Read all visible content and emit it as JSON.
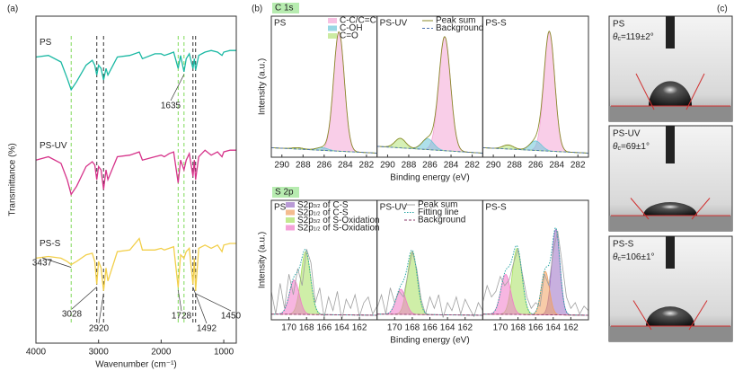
{
  "panel_labels": [
    "(a)",
    "(b)",
    "(c)"
  ],
  "chart_data": [
    {
      "type": "ftir",
      "xlabel": "Wavenumber (cm⁻¹)",
      "ylabel": "Transmittance (%)",
      "xlim": [
        4000,
        800
      ],
      "xticks": [
        4000,
        3000,
        2000,
        1000
      ],
      "ylim": [
        0,
        10
      ],
      "x": [
        4000,
        3800,
        3600,
        3500,
        3437,
        3350,
        3200,
        3100,
        3060,
        3028,
        3000,
        2960,
        2920,
        2880,
        2850,
        2700,
        2500,
        2350,
        2300,
        2100,
        2000,
        1950,
        1870,
        1800,
        1728,
        1690,
        1635,
        1600,
        1550,
        1492,
        1470,
        1450,
        1400,
        1300,
        1200,
        1100,
        1028,
        1000,
        900,
        800
      ],
      "series": [
        {
          "name": "PS",
          "color": "#1ab8a3",
          "values": [
            8.75,
            8.8,
            8.6,
            8.1,
            7.75,
            8.0,
            8.5,
            8.65,
            8.5,
            8.2,
            8.5,
            8.4,
            8.05,
            8.4,
            8.2,
            8.75,
            8.8,
            8.9,
            8.7,
            8.85,
            8.85,
            8.8,
            8.85,
            8.9,
            8.4,
            8.8,
            8.3,
            8.7,
            8.85,
            8.4,
            8.7,
            8.35,
            8.8,
            8.9,
            8.95,
            8.9,
            8.8,
            8.9,
            8.95,
            8.95
          ]
        },
        {
          "name": "PS-UV",
          "color": "#d6338a",
          "values": [
            5.6,
            5.7,
            5.5,
            5.0,
            4.55,
            4.8,
            5.4,
            5.55,
            5.45,
            5.0,
            5.4,
            5.3,
            4.7,
            5.3,
            5.0,
            5.7,
            5.75,
            5.85,
            5.6,
            5.7,
            5.75,
            5.7,
            5.8,
            5.85,
            4.9,
            5.6,
            5.3,
            5.6,
            5.8,
            5.1,
            5.6,
            5.0,
            5.7,
            5.9,
            5.75,
            5.85,
            5.7,
            5.85,
            5.9,
            5.9
          ]
        },
        {
          "name": "PS-S",
          "color": "#f2cf4a",
          "values": [
            2.6,
            2.65,
            2.6,
            2.5,
            2.4,
            2.5,
            2.7,
            2.75,
            2.5,
            1.8,
            2.5,
            2.3,
            1.6,
            2.3,
            1.9,
            2.8,
            2.85,
            3.2,
            2.85,
            2.85,
            2.9,
            2.85,
            2.9,
            2.95,
            1.7,
            2.7,
            2.6,
            2.8,
            2.9,
            1.8,
            2.6,
            1.6,
            2.9,
            3.0,
            2.9,
            3.0,
            2.8,
            3.0,
            3.05,
            3.05
          ]
        }
      ],
      "guides": [
        {
          "value": 3437,
          "color": "#7ed957"
        },
        {
          "value": 3028,
          "color": "#333333"
        },
        {
          "value": 2920,
          "color": "#333333"
        },
        {
          "value": 1728,
          "color": "#7ed957"
        },
        {
          "value": 1635,
          "color": "#7ed957"
        },
        {
          "value": 1492,
          "color": "#333333"
        },
        {
          "value": 1450,
          "color": "#333333"
        }
      ],
      "annotations": [
        1635,
        3437,
        3028,
        2920,
        1728,
        1492,
        1450
      ]
    },
    {
      "type": "xps",
      "tag": "C 1s",
      "xlabel": "Binding energy (eV)",
      "ylabel": "Intensity (a.u.)",
      "xlim": [
        291,
        281
      ],
      "xticks": [
        290,
        288,
        286,
        284,
        282
      ],
      "ylim": [
        0,
        1
      ],
      "panels": [
        "PS",
        "PS-UV",
        "PS-S"
      ],
      "series": [
        {
          "name": "C-C/C=C",
          "color": "#f4a6d6",
          "centers": [
            284.6,
            284.6,
            284.7
          ],
          "heights": [
            0.88,
            0.84,
            0.88
          ],
          "widths": [
            1.2,
            1.3,
            1.2
          ]
        },
        {
          "name": "C-OH",
          "color": "#6cc6d8",
          "centers": [
            286.2,
            286.2,
            286.0
          ],
          "heights": [
            0.02,
            0.08,
            0.07
          ],
          "widths": [
            1.3,
            1.3,
            1.3
          ]
        },
        {
          "name": "C=O",
          "color": "#b5e37a",
          "centers": [
            288.5,
            288.8,
            288.6
          ],
          "heights": [
            0.01,
            0.07,
            0.03
          ],
          "widths": [
            1.2,
            1.2,
            1.2
          ]
        }
      ],
      "sum": {
        "name": "Peak sum",
        "color": "#8a8a2a"
      },
      "background": {
        "name": "Background",
        "color": "#4a6fb0",
        "values": [
          [
            0.07,
            0.03
          ],
          [
            0.08,
            0.03
          ],
          [
            0.07,
            0.03
          ]
        ]
      }
    },
    {
      "type": "xps",
      "tag": "S 2p",
      "xlabel": "Binding energy (eV)",
      "ylabel": "Intensity (a.u.)",
      "xlim": [
        172,
        160
      ],
      "xticks": [
        170,
        168,
        166,
        164,
        162
      ],
      "ylim": [
        0,
        1
      ],
      "panels": [
        "PS",
        "PS-UV",
        "PS-S"
      ],
      "series": [
        {
          "name": {
            "main": "S2p",
            "sub": "3/2",
            "rest": " of C-S"
          },
          "color": "#9b6fc4",
          "centers": [
            null,
            null,
            163.7
          ],
          "heights": [
            null,
            null,
            0.75
          ],
          "widths": [
            null,
            null,
            1.1
          ]
        },
        {
          "name": {
            "main": "S2p",
            "sub": "1/2",
            "rest": " of C-S"
          },
          "color": "#f0a060",
          "centers": [
            null,
            null,
            164.9
          ],
          "heights": [
            null,
            null,
            0.38
          ],
          "widths": [
            null,
            null,
            1.1
          ]
        },
        {
          "name": {
            "main": "S2p",
            "sub": "3/2",
            "rest": " of S-Oxidation"
          },
          "color": "#a8e060",
          "centers": [
            168.1,
            168.0,
            168.1
          ],
          "heights": [
            0.55,
            0.55,
            0.58
          ],
          "widths": [
            1.3,
            1.3,
            1.3
          ]
        },
        {
          "name": {
            "main": "S2p",
            "sub": "1/2",
            "rest": " of S-Oxidation"
          },
          "color": "#f07ac8",
          "centers": [
            169.4,
            169.3,
            169.4
          ],
          "heights": [
            0.3,
            0.22,
            0.35
          ],
          "widths": [
            1.3,
            1.3,
            1.3
          ]
        }
      ],
      "raw_x": [
        172,
        171.5,
        171,
        170.5,
        170,
        169.5,
        169,
        168.5,
        168,
        167.5,
        167,
        166.5,
        166,
        165.5,
        165,
        164.5,
        164,
        163.5,
        163,
        162.5,
        162,
        161.5,
        161,
        160.5,
        160
      ],
      "sum": {
        "name": "Peak sum",
        "color": "#a0a0a0",
        "values": [
          [
            0.25,
            0.05,
            0.32,
            0.1,
            0.4,
            0.22,
            0.45,
            0.3,
            0.62,
            0.5,
            0.15,
            0.28,
            0.02,
            0.2,
            0.08,
            0.25,
            0.0,
            0.18,
            0.1,
            0.22,
            0.03,
            0.15,
            0.2,
            0.05,
            0.12
          ],
          [
            0.1,
            0.22,
            0.05,
            0.28,
            0.15,
            0.25,
            0.2,
            0.4,
            0.6,
            0.45,
            0.18,
            0.05,
            0.2,
            0.1,
            0.22,
            0.02,
            0.15,
            0.08,
            0.2,
            0.05,
            0.18,
            0.1,
            0.03,
            0.15,
            0.08
          ],
          [
            0.15,
            0.3,
            0.2,
            0.25,
            0.38,
            0.3,
            0.35,
            0.5,
            0.62,
            0.4,
            0.2,
            0.1,
            0.15,
            0.12,
            0.4,
            0.3,
            0.6,
            0.78,
            0.5,
            0.2,
            0.1,
            0.15,
            0.05,
            0.12,
            0.08
          ]
        ]
      },
      "fit": {
        "name": "Fitting line",
        "color": "#2aa5a5"
      },
      "background": {
        "name": "Background",
        "color": "#8a3a6a",
        "values": [
          [
            0.05,
            0.04
          ],
          [
            0.05,
            0.04
          ],
          [
            0.05,
            0.04
          ]
        ]
      }
    }
  ],
  "images": [
    {
      "name": "PS",
      "symbol": "θ",
      "sub": "c",
      "value": "=119±2°"
    },
    {
      "name": "PS-UV",
      "symbol": "θ",
      "sub": "c",
      "value": "=69±1°"
    },
    {
      "name": "PS-S",
      "symbol": "θ",
      "sub": "c",
      "value": "=106±1°"
    }
  ]
}
